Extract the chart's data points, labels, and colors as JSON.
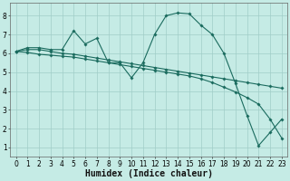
{
  "xlabel": "Humidex (Indice chaleur)",
  "bg_color": "#c5ebe5",
  "grid_color": "#a0cdc8",
  "line_color": "#1a6b5e",
  "xlim": [
    -0.5,
    23.5
  ],
  "ylim": [
    0.5,
    8.7
  ],
  "xticks": [
    0,
    1,
    2,
    3,
    4,
    5,
    6,
    7,
    8,
    9,
    10,
    11,
    12,
    13,
    14,
    15,
    16,
    17,
    18,
    19,
    20,
    21,
    22,
    23
  ],
  "yticks": [
    1,
    2,
    3,
    4,
    5,
    6,
    7,
    8
  ],
  "line1_x": [
    0,
    1,
    2,
    3,
    4,
    5,
    6,
    7,
    8,
    9,
    10,
    11,
    12,
    13,
    14,
    15,
    16,
    17,
    18,
    19,
    20,
    21,
    22,
    23
  ],
  "line1_y": [
    6.1,
    6.3,
    6.3,
    6.2,
    6.2,
    7.2,
    6.5,
    6.8,
    5.5,
    5.5,
    4.7,
    5.5,
    7.0,
    8.0,
    8.15,
    8.1,
    7.5,
    7.0,
    6.0,
    4.4,
    2.7,
    1.1,
    1.8,
    2.5
  ],
  "line2_x": [
    0,
    1,
    2,
    3,
    4,
    5,
    6,
    7,
    8,
    9,
    10,
    11,
    12,
    13,
    14,
    15,
    16,
    17,
    18,
    19,
    20,
    21,
    22,
    23
  ],
  "line2_y": [
    6.1,
    6.2,
    6.2,
    6.1,
    6.0,
    5.95,
    5.85,
    5.75,
    5.65,
    5.55,
    5.45,
    5.35,
    5.25,
    5.15,
    5.05,
    4.95,
    4.85,
    4.75,
    4.65,
    4.55,
    4.45,
    4.35,
    4.25,
    4.15
  ],
  "line3_x": [
    0,
    1,
    2,
    3,
    4,
    5,
    6,
    7,
    8,
    9,
    10,
    11,
    12,
    13,
    14,
    15,
    16,
    17,
    18,
    19,
    20,
    21,
    22,
    23
  ],
  "line3_y": [
    6.1,
    6.05,
    5.95,
    5.9,
    5.85,
    5.8,
    5.7,
    5.6,
    5.5,
    5.4,
    5.3,
    5.2,
    5.1,
    5.0,
    4.9,
    4.8,
    4.65,
    4.45,
    4.2,
    3.95,
    3.65,
    3.3,
    2.5,
    1.5
  ],
  "tick_fontsize": 5.5,
  "xlabel_fontsize": 7.0
}
